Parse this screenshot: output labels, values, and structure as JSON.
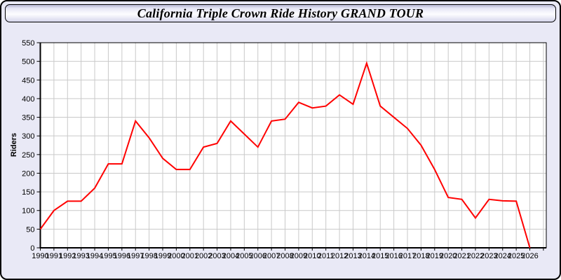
{
  "window": {
    "title": "California Triple Crown Ride History GRAND TOUR"
  },
  "chart_data": {
    "type": "line",
    "title": "California Triple Crown Ride History GRAND TOUR",
    "xlabel": "",
    "ylabel": "Riders",
    "series_name": "Riders",
    "x": [
      1990,
      1991,
      1992,
      1993,
      1994,
      1995,
      1996,
      1997,
      1998,
      1999,
      2000,
      2001,
      2002,
      2003,
      2004,
      2005,
      2006,
      2007,
      2008,
      2009,
      2010,
      2011,
      2012,
      2013,
      2014,
      2015,
      2016,
      2017,
      2018,
      2019,
      2020,
      2021,
      2022,
      2023,
      2024,
      2025,
      2026
    ],
    "values": [
      50,
      100,
      125,
      125,
      160,
      225,
      225,
      340,
      295,
      240,
      210,
      210,
      270,
      280,
      340,
      305,
      270,
      340,
      345,
      390,
      375,
      380,
      410,
      385,
      495,
      380,
      350,
      320,
      275,
      210,
      135,
      130,
      80,
      130,
      126,
      125,
      0
    ],
    "ylim": [
      0,
      550
    ],
    "ytick_step": 50,
    "grid": true,
    "legend": "none"
  },
  "colors": {
    "panel_bg": "#e9e9f6",
    "plot_bg": "#ffffff",
    "grid": "#c9c9c9",
    "axis": "#000000",
    "line": "#ff0000",
    "title_text": "#000000"
  }
}
